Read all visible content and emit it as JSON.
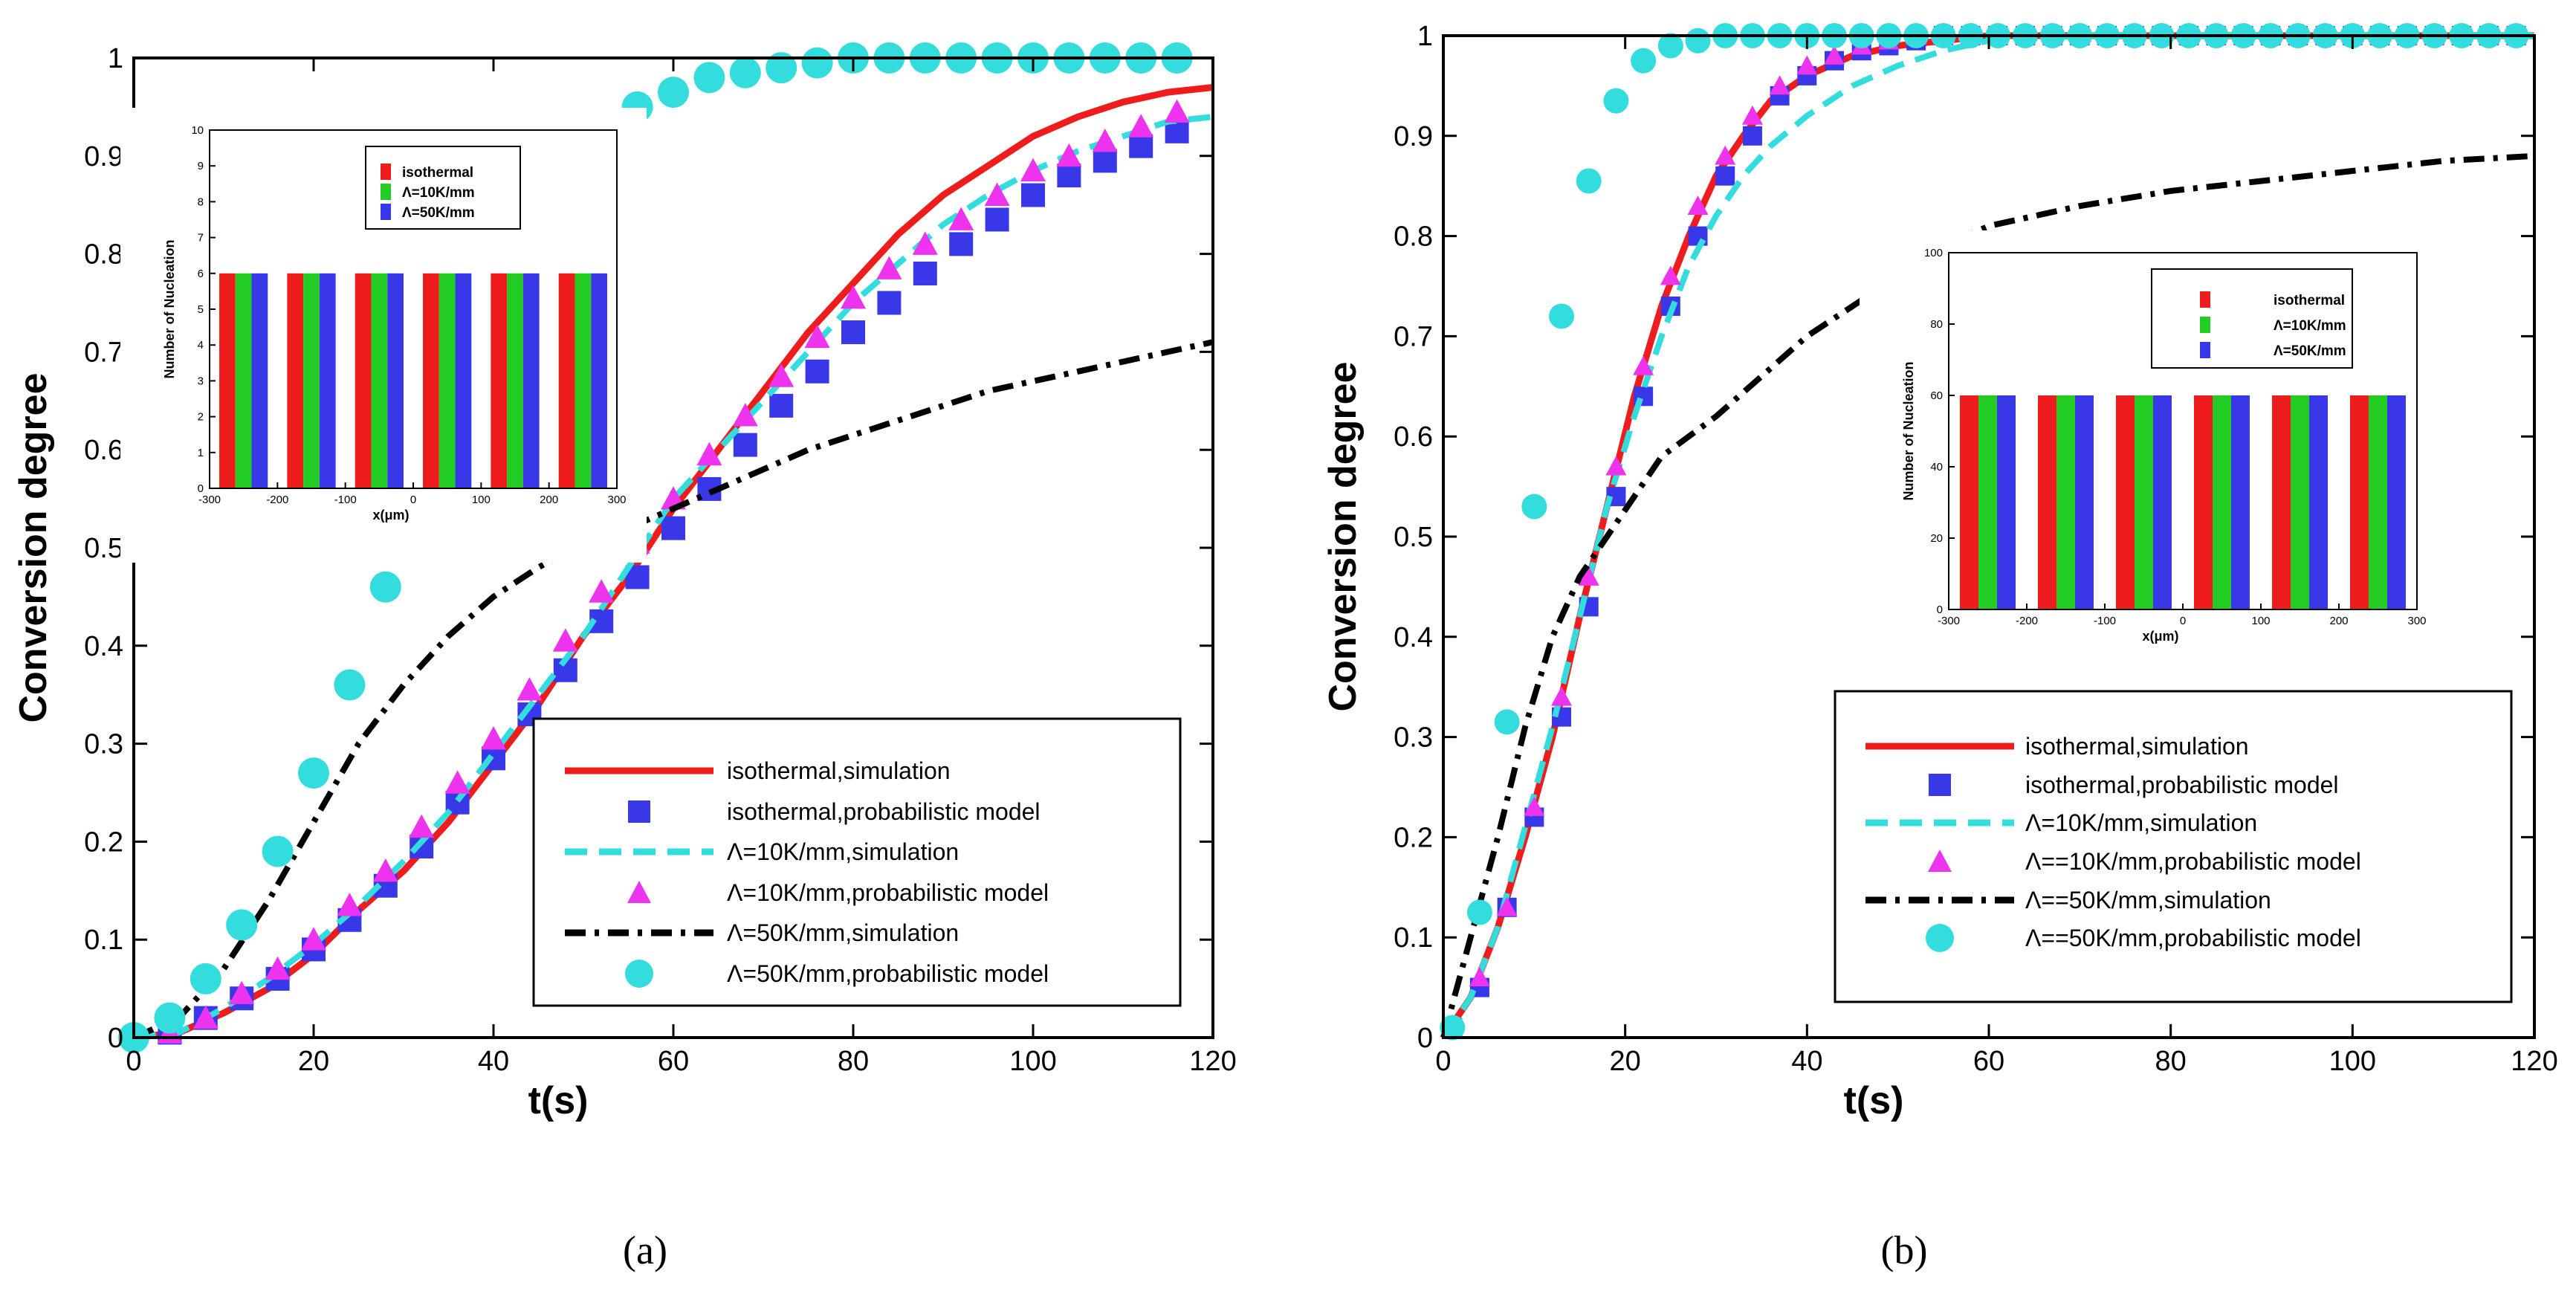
{
  "chart_data": [
    {
      "id": "a",
      "type": "line",
      "caption": "(a)",
      "xlabel": "t(s)",
      "ylabel": "Conversion degree",
      "xlim": [
        0,
        120
      ],
      "ylim": [
        0,
        1
      ],
      "xticks": [
        0,
        20,
        40,
        60,
        80,
        100,
        120
      ],
      "yticks": [
        0,
        0.1,
        0.2,
        0.3,
        0.4,
        0.5,
        0.6,
        0.7,
        0.8,
        0.9,
        1
      ],
      "legend_position": "bottom-right",
      "series": [
        {
          "name": "isothermal,simulation",
          "style": "solid",
          "color": "#ee1c1c",
          "x": [
            0,
            5,
            10,
            15,
            20,
            25,
            30,
            35,
            40,
            45,
            50,
            55,
            60,
            65,
            70,
            75,
            80,
            85,
            90,
            95,
            100,
            105,
            110,
            115,
            120
          ],
          "y": [
            0,
            0.005,
            0.025,
            0.05,
            0.085,
            0.13,
            0.17,
            0.22,
            0.28,
            0.34,
            0.41,
            0.47,
            0.54,
            0.6,
            0.66,
            0.72,
            0.77,
            0.82,
            0.86,
            0.89,
            0.92,
            0.94,
            0.955,
            0.965,
            0.97
          ]
        },
        {
          "name": "isothermal,probabilistic model",
          "style": "square",
          "color": "#3838e8",
          "x": [
            4,
            8,
            12,
            16,
            20,
            24,
            28,
            32,
            36,
            40,
            44,
            48,
            52,
            56,
            60,
            64,
            68,
            72,
            76,
            80,
            84,
            88,
            92,
            96,
            100,
            104,
            108,
            112,
            116
          ],
          "y": [
            0.005,
            0.02,
            0.04,
            0.06,
            0.09,
            0.12,
            0.155,
            0.195,
            0.24,
            0.285,
            0.33,
            0.375,
            0.425,
            0.47,
            0.52,
            0.56,
            0.605,
            0.645,
            0.68,
            0.72,
            0.75,
            0.78,
            0.81,
            0.835,
            0.86,
            0.88,
            0.895,
            0.91,
            0.925
          ]
        },
        {
          "name": "Λ=10K/mm,simulation",
          "style": "dashed",
          "color": "#33dddd",
          "x": [
            0,
            5,
            10,
            15,
            20,
            25,
            30,
            35,
            40,
            45,
            50,
            55,
            60,
            65,
            70,
            75,
            80,
            85,
            90,
            95,
            100,
            105,
            110,
            115,
            120
          ],
          "y": [
            0,
            0.005,
            0.03,
            0.06,
            0.095,
            0.135,
            0.18,
            0.23,
            0.29,
            0.35,
            0.41,
            0.48,
            0.55,
            0.6,
            0.65,
            0.7,
            0.75,
            0.79,
            0.83,
            0.86,
            0.885,
            0.905,
            0.92,
            0.935,
            0.94
          ]
        },
        {
          "name": "Λ=10K/mm,probabilistic model",
          "style": "triangle",
          "color": "#ee33ee",
          "x": [
            4,
            8,
            12,
            16,
            20,
            24,
            28,
            32,
            36,
            40,
            44,
            48,
            52,
            56,
            60,
            64,
            68,
            72,
            76,
            80,
            84,
            88,
            92,
            96,
            100,
            104,
            108,
            112,
            116
          ],
          "y": [
            0.005,
            0.02,
            0.045,
            0.07,
            0.1,
            0.135,
            0.17,
            0.215,
            0.26,
            0.305,
            0.355,
            0.405,
            0.455,
            0.505,
            0.55,
            0.595,
            0.635,
            0.675,
            0.715,
            0.755,
            0.785,
            0.81,
            0.835,
            0.86,
            0.885,
            0.9,
            0.915,
            0.93,
            0.945
          ]
        },
        {
          "name": "Λ=50K/mm,simulation",
          "style": "dashdot",
          "color": "#000000",
          "x": [
            0,
            5,
            10,
            15,
            20,
            25,
            30,
            35,
            40,
            45,
            50,
            55,
            60,
            65,
            70,
            75,
            80,
            85,
            90,
            95,
            100,
            105,
            110,
            115,
            120
          ],
          "y": [
            0,
            0.02,
            0.07,
            0.14,
            0.22,
            0.3,
            0.36,
            0.41,
            0.45,
            0.48,
            0.505,
            0.52,
            0.54,
            0.56,
            0.58,
            0.6,
            0.615,
            0.63,
            0.645,
            0.66,
            0.67,
            0.68,
            0.69,
            0.7,
            0.71
          ]
        },
        {
          "name": "Λ=50K/mm,probabilistic model",
          "style": "circle",
          "color": "#33dddd",
          "x": [
            0,
            4,
            8,
            12,
            16,
            20,
            24,
            28,
            32,
            36,
            40,
            44,
            48,
            52,
            56,
            60,
            64,
            68,
            72,
            76,
            80,
            84,
            88,
            92,
            96,
            100,
            104,
            108,
            112,
            116
          ],
          "y": [
            0,
            0.02,
            0.06,
            0.115,
            0.19,
            0.27,
            0.36,
            0.46,
            0.56,
            0.67,
            0.75,
            0.82,
            0.88,
            0.92,
            0.95,
            0.965,
            0.98,
            0.985,
            0.99,
            0.995,
            1,
            1,
            1,
            1,
            1,
            1,
            1,
            1,
            1,
            1
          ]
        }
      ],
      "inset": {
        "xlabel": "x(μm)",
        "ylabel": "Number of Nucleation",
        "xlim": [
          -300,
          300
        ],
        "ylim": [
          0,
          10
        ],
        "xticks": [
          -300,
          -200,
          -100,
          0,
          100,
          200,
          300
        ],
        "yticks": [
          0,
          1,
          2,
          3,
          4,
          5,
          6,
          7,
          8,
          9,
          10
        ],
        "categories": [
          -250,
          -150,
          -50,
          50,
          150,
          250
        ],
        "series": [
          {
            "name": "isothermal",
            "color": "#ee1c1c",
            "values": [
              6,
              6,
              6,
              6,
              6,
              6
            ]
          },
          {
            "name": "Λ=10K/mm",
            "color": "#22cc22",
            "values": [
              6,
              6,
              6,
              6,
              6,
              6
            ]
          },
          {
            "name": "Λ=50K/mm",
            "color": "#3838e8",
            "values": [
              6,
              6,
              6,
              6,
              6,
              6
            ]
          }
        ]
      }
    },
    {
      "id": "b",
      "type": "line",
      "caption": "(b)",
      "xlabel": "t(s)",
      "ylabel": "Conversion degree",
      "xlim": [
        0,
        120
      ],
      "ylim": [
        0,
        1
      ],
      "xticks": [
        0,
        20,
        40,
        60,
        80,
        100,
        120
      ],
      "yticks": [
        0,
        0.1,
        0.2,
        0.3,
        0.4,
        0.5,
        0.6,
        0.7,
        0.8,
        0.9,
        1
      ],
      "legend_position": "bottom-right",
      "series": [
        {
          "name": "isothermal,simulation",
          "style": "solid",
          "color": "#ee1c1c",
          "x": [
            0,
            3,
            6,
            9,
            12,
            15,
            18,
            21,
            24,
            27,
            30,
            33,
            36,
            40,
            45,
            50,
            55,
            60,
            70,
            80,
            90,
            100,
            110,
            120
          ],
          "y": [
            0,
            0.04,
            0.11,
            0.2,
            0.3,
            0.42,
            0.53,
            0.64,
            0.73,
            0.8,
            0.86,
            0.9,
            0.935,
            0.96,
            0.98,
            0.99,
            0.995,
            1,
            1,
            1,
            1,
            1,
            1,
            1
          ]
        },
        {
          "name": "isothermal,probabilistic model",
          "style": "square",
          "color": "#3838e8",
          "x": [
            1,
            4,
            7,
            10,
            13,
            16,
            19,
            22,
            25,
            28,
            31,
            34,
            37,
            40,
            43,
            46,
            49,
            52,
            55,
            58,
            61,
            64,
            67,
            70,
            73,
            76,
            79,
            82,
            85,
            88,
            91,
            94,
            97,
            100,
            103,
            106,
            109,
            112,
            115,
            118
          ],
          "y": [
            0.01,
            0.05,
            0.13,
            0.22,
            0.32,
            0.43,
            0.54,
            0.64,
            0.73,
            0.8,
            0.86,
            0.9,
            0.94,
            0.96,
            0.975,
            0.985,
            0.99,
            0.995,
            1,
            1,
            1,
            1,
            1,
            1,
            1,
            1,
            1,
            1,
            1,
            1,
            1,
            1,
            1,
            1,
            1,
            1,
            1,
            1,
            1,
            1
          ]
        },
        {
          "name": "Λ=10K/mm,simulation",
          "style": "dashed",
          "color": "#33dddd",
          "x": [
            0,
            3,
            6,
            9,
            12,
            15,
            18,
            21,
            24,
            27,
            30,
            33,
            36,
            40,
            45,
            50,
            55,
            60,
            70,
            80,
            90,
            100,
            110,
            120
          ],
          "y": [
            0,
            0.04,
            0.11,
            0.21,
            0.31,
            0.42,
            0.53,
            0.62,
            0.7,
            0.77,
            0.82,
            0.86,
            0.89,
            0.92,
            0.95,
            0.97,
            0.985,
            0.995,
            1,
            1,
            1,
            1,
            1,
            1
          ]
        },
        {
          "name": "Λ==10K/mm,probabilistic model",
          "style": "triangle",
          "color": "#ee33ee",
          "x": [
            1,
            4,
            7,
            10,
            13,
            16,
            19,
            22,
            25,
            28,
            31,
            34,
            37,
            40,
            43,
            46,
            49,
            52,
            55,
            58,
            61,
            64,
            67,
            70,
            73,
            76,
            79,
            82,
            85,
            88,
            91,
            94,
            97,
            100,
            103,
            106,
            109,
            112,
            115,
            118
          ],
          "y": [
            0.01,
            0.06,
            0.13,
            0.23,
            0.34,
            0.46,
            0.57,
            0.67,
            0.76,
            0.83,
            0.88,
            0.92,
            0.95,
            0.97,
            0.98,
            0.99,
            0.995,
            1,
            1,
            1,
            1,
            1,
            1,
            1,
            1,
            1,
            1,
            1,
            1,
            1,
            1,
            1,
            1,
            1,
            1,
            1,
            1,
            1,
            1,
            1
          ]
        },
        {
          "name": "Λ==50K/mm,simulation",
          "style": "dashdot",
          "color": "#000000",
          "x": [
            0,
            3,
            6,
            9,
            12,
            15,
            18,
            21,
            24,
            27,
            30,
            35,
            40,
            45,
            50,
            55,
            60,
            70,
            80,
            90,
            100,
            110,
            120
          ],
          "y": [
            0,
            0.1,
            0.2,
            0.31,
            0.4,
            0.46,
            0.5,
            0.54,
            0.58,
            0.6,
            0.62,
            0.66,
            0.7,
            0.73,
            0.76,
            0.79,
            0.81,
            0.83,
            0.845,
            0.855,
            0.865,
            0.875,
            0.88
          ]
        },
        {
          "name": "Λ==50K/mm,probabilistic model",
          "style": "circle",
          "color": "#33dddd",
          "x": [
            1,
            4,
            7,
            10,
            13,
            16,
            19,
            22,
            25,
            28,
            31,
            34,
            37,
            40,
            43,
            46,
            49,
            52,
            55,
            58,
            61,
            64,
            67,
            70,
            73,
            76,
            79,
            82,
            85,
            88,
            91,
            94,
            97,
            100,
            103,
            106,
            109,
            112,
            115,
            118
          ],
          "y": [
            0.01,
            0.125,
            0.315,
            0.53,
            0.72,
            0.855,
            0.935,
            0.975,
            0.99,
            0.995,
            1,
            1,
            1,
            1,
            1,
            1,
            1,
            1,
            1,
            1,
            1,
            1,
            1,
            1,
            1,
            1,
            1,
            1,
            1,
            1,
            1,
            1,
            1,
            1,
            1,
            1,
            1,
            1,
            1,
            1
          ]
        }
      ],
      "inset": {
        "xlabel": "x(μm)",
        "ylabel": "Number of Nucleation",
        "xlim": [
          -300,
          300
        ],
        "ylim": [
          0,
          100
        ],
        "xticks": [
          -300,
          -200,
          -100,
          0,
          100,
          200,
          300
        ],
        "yticks": [
          0,
          20,
          40,
          60,
          80,
          100
        ],
        "categories": [
          -250,
          -150,
          -50,
          50,
          150,
          250
        ],
        "series": [
          {
            "name": "isothermal",
            "color": "#ee1c1c",
            "values": [
              60,
              60,
              60,
              60,
              60,
              60
            ]
          },
          {
            "name": "Λ=10K/mm",
            "color": "#22cc22",
            "values": [
              60,
              60,
              60,
              60,
              60,
              60
            ]
          },
          {
            "name": "Λ=50K/mm",
            "color": "#3838e8",
            "values": [
              60,
              60,
              60,
              60,
              60,
              60
            ]
          }
        ]
      }
    }
  ]
}
